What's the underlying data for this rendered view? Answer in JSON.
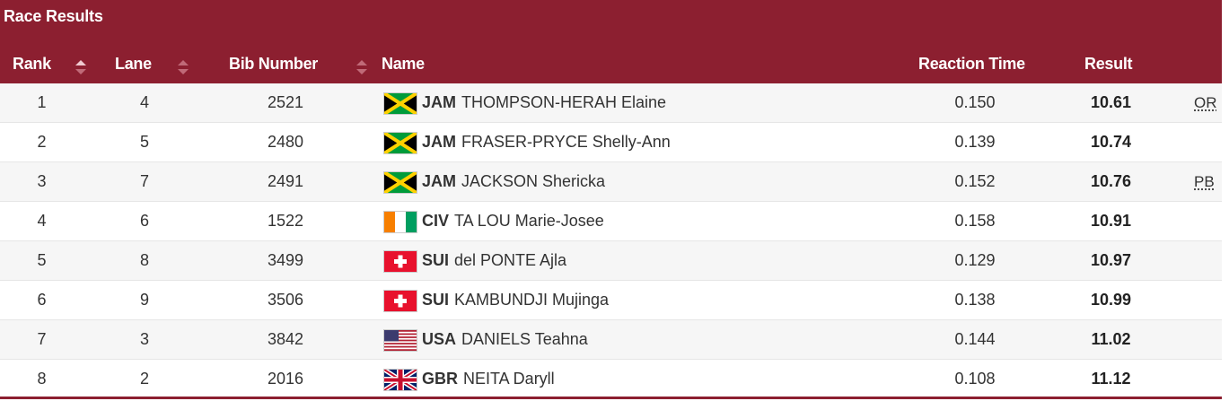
{
  "panel": {
    "title": "Race Results"
  },
  "columns": {
    "rank": "Rank",
    "lane": "Lane",
    "bib": "Bib Number",
    "name": "Name",
    "reaction": "Reaction Time",
    "result": "Result"
  },
  "colors": {
    "header": "#8c1f30",
    "row_alt": "#f6f6f6"
  },
  "rows": [
    {
      "rank": "1",
      "lane": "4",
      "bib": "2521",
      "noc": "JAM",
      "flag": "jamaica-flag-icon",
      "athlete": "THOMPSON-HERAH Elaine",
      "reaction": "0.150",
      "result": "10.61",
      "qual": "OR"
    },
    {
      "rank": "2",
      "lane": "5",
      "bib": "2480",
      "noc": "JAM",
      "flag": "jamaica-flag-icon",
      "athlete": "FRASER-PRYCE Shelly-Ann",
      "reaction": "0.139",
      "result": "10.74",
      "qual": ""
    },
    {
      "rank": "3",
      "lane": "7",
      "bib": "2491",
      "noc": "JAM",
      "flag": "jamaica-flag-icon",
      "athlete": "JACKSON Shericka",
      "reaction": "0.152",
      "result": "10.76",
      "qual": "PB"
    },
    {
      "rank": "4",
      "lane": "6",
      "bib": "1522",
      "noc": "CIV",
      "flag": "ivory-coast-flag-icon",
      "athlete": "TA LOU Marie-Josee",
      "reaction": "0.158",
      "result": "10.91",
      "qual": ""
    },
    {
      "rank": "5",
      "lane": "8",
      "bib": "3499",
      "noc": "SUI",
      "flag": "switzerland-flag-icon",
      "athlete": "del PONTE Ajla",
      "reaction": "0.129",
      "result": "10.97",
      "qual": ""
    },
    {
      "rank": "6",
      "lane": "9",
      "bib": "3506",
      "noc": "SUI",
      "flag": "switzerland-flag-icon",
      "athlete": "KAMBUNDJI Mujinga",
      "reaction": "0.138",
      "result": "10.99",
      "qual": ""
    },
    {
      "rank": "7",
      "lane": "3",
      "bib": "3842",
      "noc": "USA",
      "flag": "usa-flag-icon",
      "athlete": "DANIELS Teahna",
      "reaction": "0.144",
      "result": "11.02",
      "qual": ""
    },
    {
      "rank": "8",
      "lane": "2",
      "bib": "2016",
      "noc": "GBR",
      "flag": "great-britain-flag-icon",
      "athlete": "NEITA Daryll",
      "reaction": "0.108",
      "result": "11.12",
      "qual": ""
    }
  ]
}
